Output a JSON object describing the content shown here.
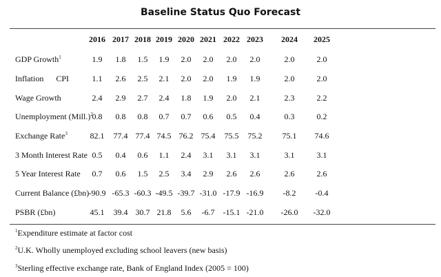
{
  "title": "Baseline Status Quo Forecast",
  "years": [
    "2016",
    "2017",
    "2018",
    "2019",
    "2020",
    "2021",
    "2022",
    "2023",
    "2024",
    "2025"
  ],
  "rows": [
    {
      "label": "GDP Growth",
      "sup": "1",
      "values": [
        "1.9",
        "1.8",
        "1.5",
        "1.9",
        "2.0",
        "2.0",
        "2.0",
        "2.0",
        "2.0",
        "2.0"
      ]
    },
    {
      "label": "Inflation      CPI",
      "sup": "",
      "values": [
        "1.1",
        "2.6",
        "2.5",
        "2.1",
        "2.0",
        "2.0",
        "1.9",
        "1.9",
        "2.0",
        "2.0"
      ]
    },
    {
      "label": "Wage Growth",
      "sup": "",
      "values": [
        "2.4",
        "2.9",
        "2.7",
        "2.4",
        "1.8",
        "1.9",
        "2.0",
        "2.1",
        "2.3",
        "2.2"
      ]
    },
    {
      "label": "Unemployment (Mill.)",
      "sup": "2",
      "values": [
        "0.8",
        "0.8",
        "0.8",
        "0.7",
        "0.7",
        "0.6",
        "0.5",
        "0.4",
        "0.3",
        "0.2"
      ]
    },
    {
      "label": "Exchange Rate",
      "sup": "3",
      "values": [
        "82.1",
        "77.4",
        "77.4",
        "74.5",
        "76.2",
        "75.4",
        "75.5",
        "75.2",
        "75.1",
        "74.6"
      ]
    },
    {
      "label": "3 Month Interest Rate",
      "sup": "",
      "values": [
        "0.5",
        "0.4",
        "0.6",
        "1.1",
        "2.4",
        "3.1",
        "3.1",
        "3.1",
        "3.1",
        "3.1"
      ]
    },
    {
      "label": "5 Year Interest Rate",
      "sup": "",
      "values": [
        "0.7",
        "0.6",
        "1.5",
        "2.5",
        "3.4",
        "2.9",
        "2.6",
        "2.6",
        "2.6",
        "2.6"
      ]
    },
    {
      "label": "Current Balance (£bn)",
      "sup": "",
      "values": [
        "-90.9",
        "-65.3",
        "-60.3",
        "-49.5",
        "-39.7",
        "-31.0",
        "-17.9",
        "-16.9",
        "-8.2",
        "-0.4"
      ]
    },
    {
      "label": "PSBR (£bn)",
      "sup": "",
      "values": [
        "45.1",
        "39.4",
        "30.7",
        "21.8",
        "5.6",
        "-6.7",
        "-15.1",
        "-21.0",
        "-26.0",
        "-32.0"
      ]
    }
  ],
  "footnotes": [
    {
      "sup": "1",
      "text": "Expenditure estimate at factor cost"
    },
    {
      "sup": "2",
      "text": "U.K. Wholly unemployed excluding school leavers (new basis)"
    },
    {
      "sup": "3",
      "text": "Sterling effective exchange rate, Bank of England Index (2005 = 100)"
    }
  ]
}
